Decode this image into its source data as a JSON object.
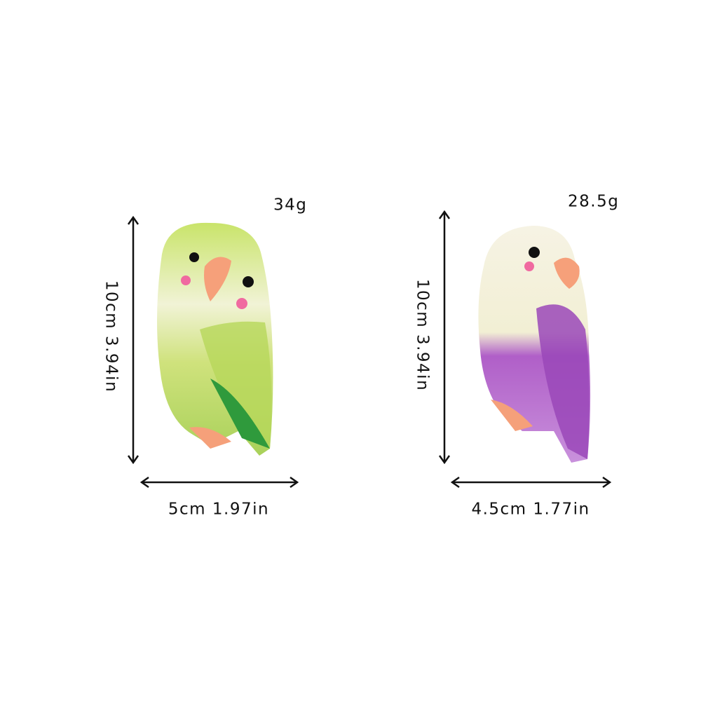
{
  "items": [
    {
      "weight": "34g",
      "height": "10cm 3.94in",
      "width": "5cm 1.97in"
    },
    {
      "weight": "28.5g",
      "height": "10cm 3.94in",
      "width": "4.5cm 1.77in"
    }
  ]
}
